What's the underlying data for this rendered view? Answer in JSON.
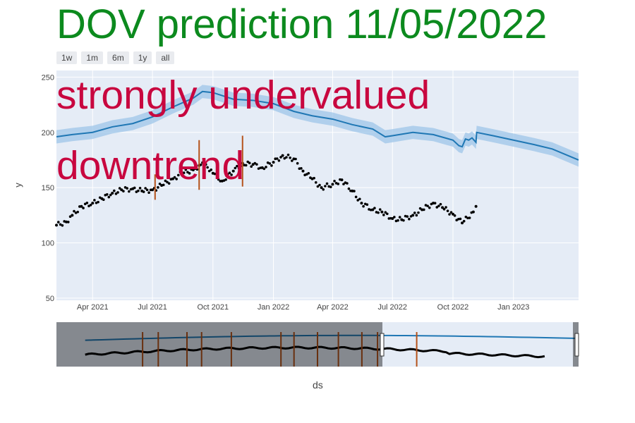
{
  "title": "DOV prediction 11/05/2022",
  "range_buttons": [
    "1w",
    "1m",
    "6m",
    "1y",
    "all"
  ],
  "annotations": [
    "strongly undervalued",
    "downtrend"
  ],
  "chart_data": {
    "type": "line",
    "xlabel": "ds",
    "ylabel": "y",
    "x_range": [
      "2021-02-05",
      "2023-04-10"
    ],
    "ylim": [
      48,
      256
    ],
    "y_ticks": [
      50,
      100,
      150,
      200,
      250
    ],
    "x_ticks": [
      {
        "date": "2021-04-01",
        "label": "Apr 2021"
      },
      {
        "date": "2021-07-01",
        "label": "Jul 2021"
      },
      {
        "date": "2021-10-01",
        "label": "Oct 2021"
      },
      {
        "date": "2022-01-01",
        "label": "Jan 2022"
      },
      {
        "date": "2022-04-01",
        "label": "Apr 2022"
      },
      {
        "date": "2022-07-01",
        "label": "Jul 2022"
      },
      {
        "date": "2022-10-01",
        "label": "Oct 2022"
      },
      {
        "date": "2023-01-01",
        "label": "Jan 2023"
      }
    ],
    "grid": true,
    "colors": {
      "plot_bg": "#e5ecf6",
      "forecast": "#1f77b4",
      "band": "#9ec5e8",
      "actual": "#000000",
      "signal": "#b5531b"
    },
    "forecast": {
      "x": [
        "2021-02-05",
        "2021-03-01",
        "2021-04-01",
        "2021-05-01",
        "2021-06-01",
        "2021-07-01",
        "2021-08-01",
        "2021-09-01",
        "2021-09-15",
        "2021-10-01",
        "2021-11-01",
        "2021-12-01",
        "2022-01-01",
        "2022-02-01",
        "2022-03-01",
        "2022-04-01",
        "2022-05-01",
        "2022-06-01",
        "2022-06-20",
        "2022-07-01",
        "2022-08-01",
        "2022-09-01",
        "2022-10-01",
        "2022-10-10",
        "2022-10-15",
        "2022-10-20",
        "2022-10-25",
        "2022-10-30",
        "2022-11-05",
        "2022-11-06",
        "2022-12-01",
        "2023-01-01",
        "2023-02-01",
        "2023-03-01",
        "2023-04-10"
      ],
      "y": [
        196,
        198,
        200,
        205,
        208,
        214,
        223,
        231,
        237,
        236,
        230,
        229,
        226,
        219,
        215,
        212,
        207,
        203,
        196,
        197,
        200,
        198,
        193,
        188,
        187,
        194,
        193,
        195,
        191,
        200,
        197,
        193,
        189,
        185,
        175
      ],
      "band": 6
    },
    "actual": {
      "x": [
        "2021-02-05",
        "2021-02-20",
        "2021-03-01",
        "2021-03-15",
        "2021-04-01",
        "2021-04-15",
        "2021-05-01",
        "2021-05-15",
        "2021-06-01",
        "2021-06-15",
        "2021-07-01",
        "2021-07-15",
        "2021-08-01",
        "2021-08-15",
        "2021-09-01",
        "2021-09-10",
        "2021-09-20",
        "2021-10-01",
        "2021-10-15",
        "2021-11-01",
        "2021-11-15",
        "2021-12-01",
        "2021-12-15",
        "2022-01-01",
        "2022-01-15",
        "2022-02-01",
        "2022-02-15",
        "2022-03-01",
        "2022-03-15",
        "2022-04-01",
        "2022-04-15",
        "2022-05-01",
        "2022-05-15",
        "2022-06-01",
        "2022-06-15",
        "2022-07-01",
        "2022-07-15",
        "2022-08-01",
        "2022-08-15",
        "2022-09-01",
        "2022-09-15",
        "2022-10-01",
        "2022-10-15",
        "2022-11-01",
        "2022-11-05"
      ],
      "y": [
        116,
        119,
        125,
        133,
        136,
        140,
        145,
        148,
        149,
        147,
        148,
        152,
        158,
        163,
        166,
        170,
        171,
        163,
        156,
        165,
        172,
        171,
        168,
        173,
        179,
        176,
        165,
        158,
        150,
        153,
        157,
        147,
        136,
        130,
        128,
        122,
        121,
        125,
        130,
        136,
        132,
        126,
        118,
        128,
        133
      ]
    },
    "signals": [
      {
        "x": "2021-07-05",
        "low": 139,
        "high": 162
      },
      {
        "x": "2021-09-10",
        "low": 148,
        "high": 193
      },
      {
        "x": "2021-11-15",
        "low": 151,
        "high": 197
      }
    ],
    "rangeslider": {
      "signals_frac": [
        0.165,
        0.195,
        0.25,
        0.278,
        0.335,
        0.43,
        0.455,
        0.5,
        0.54,
        0.585,
        0.615,
        0.69
      ]
    }
  }
}
